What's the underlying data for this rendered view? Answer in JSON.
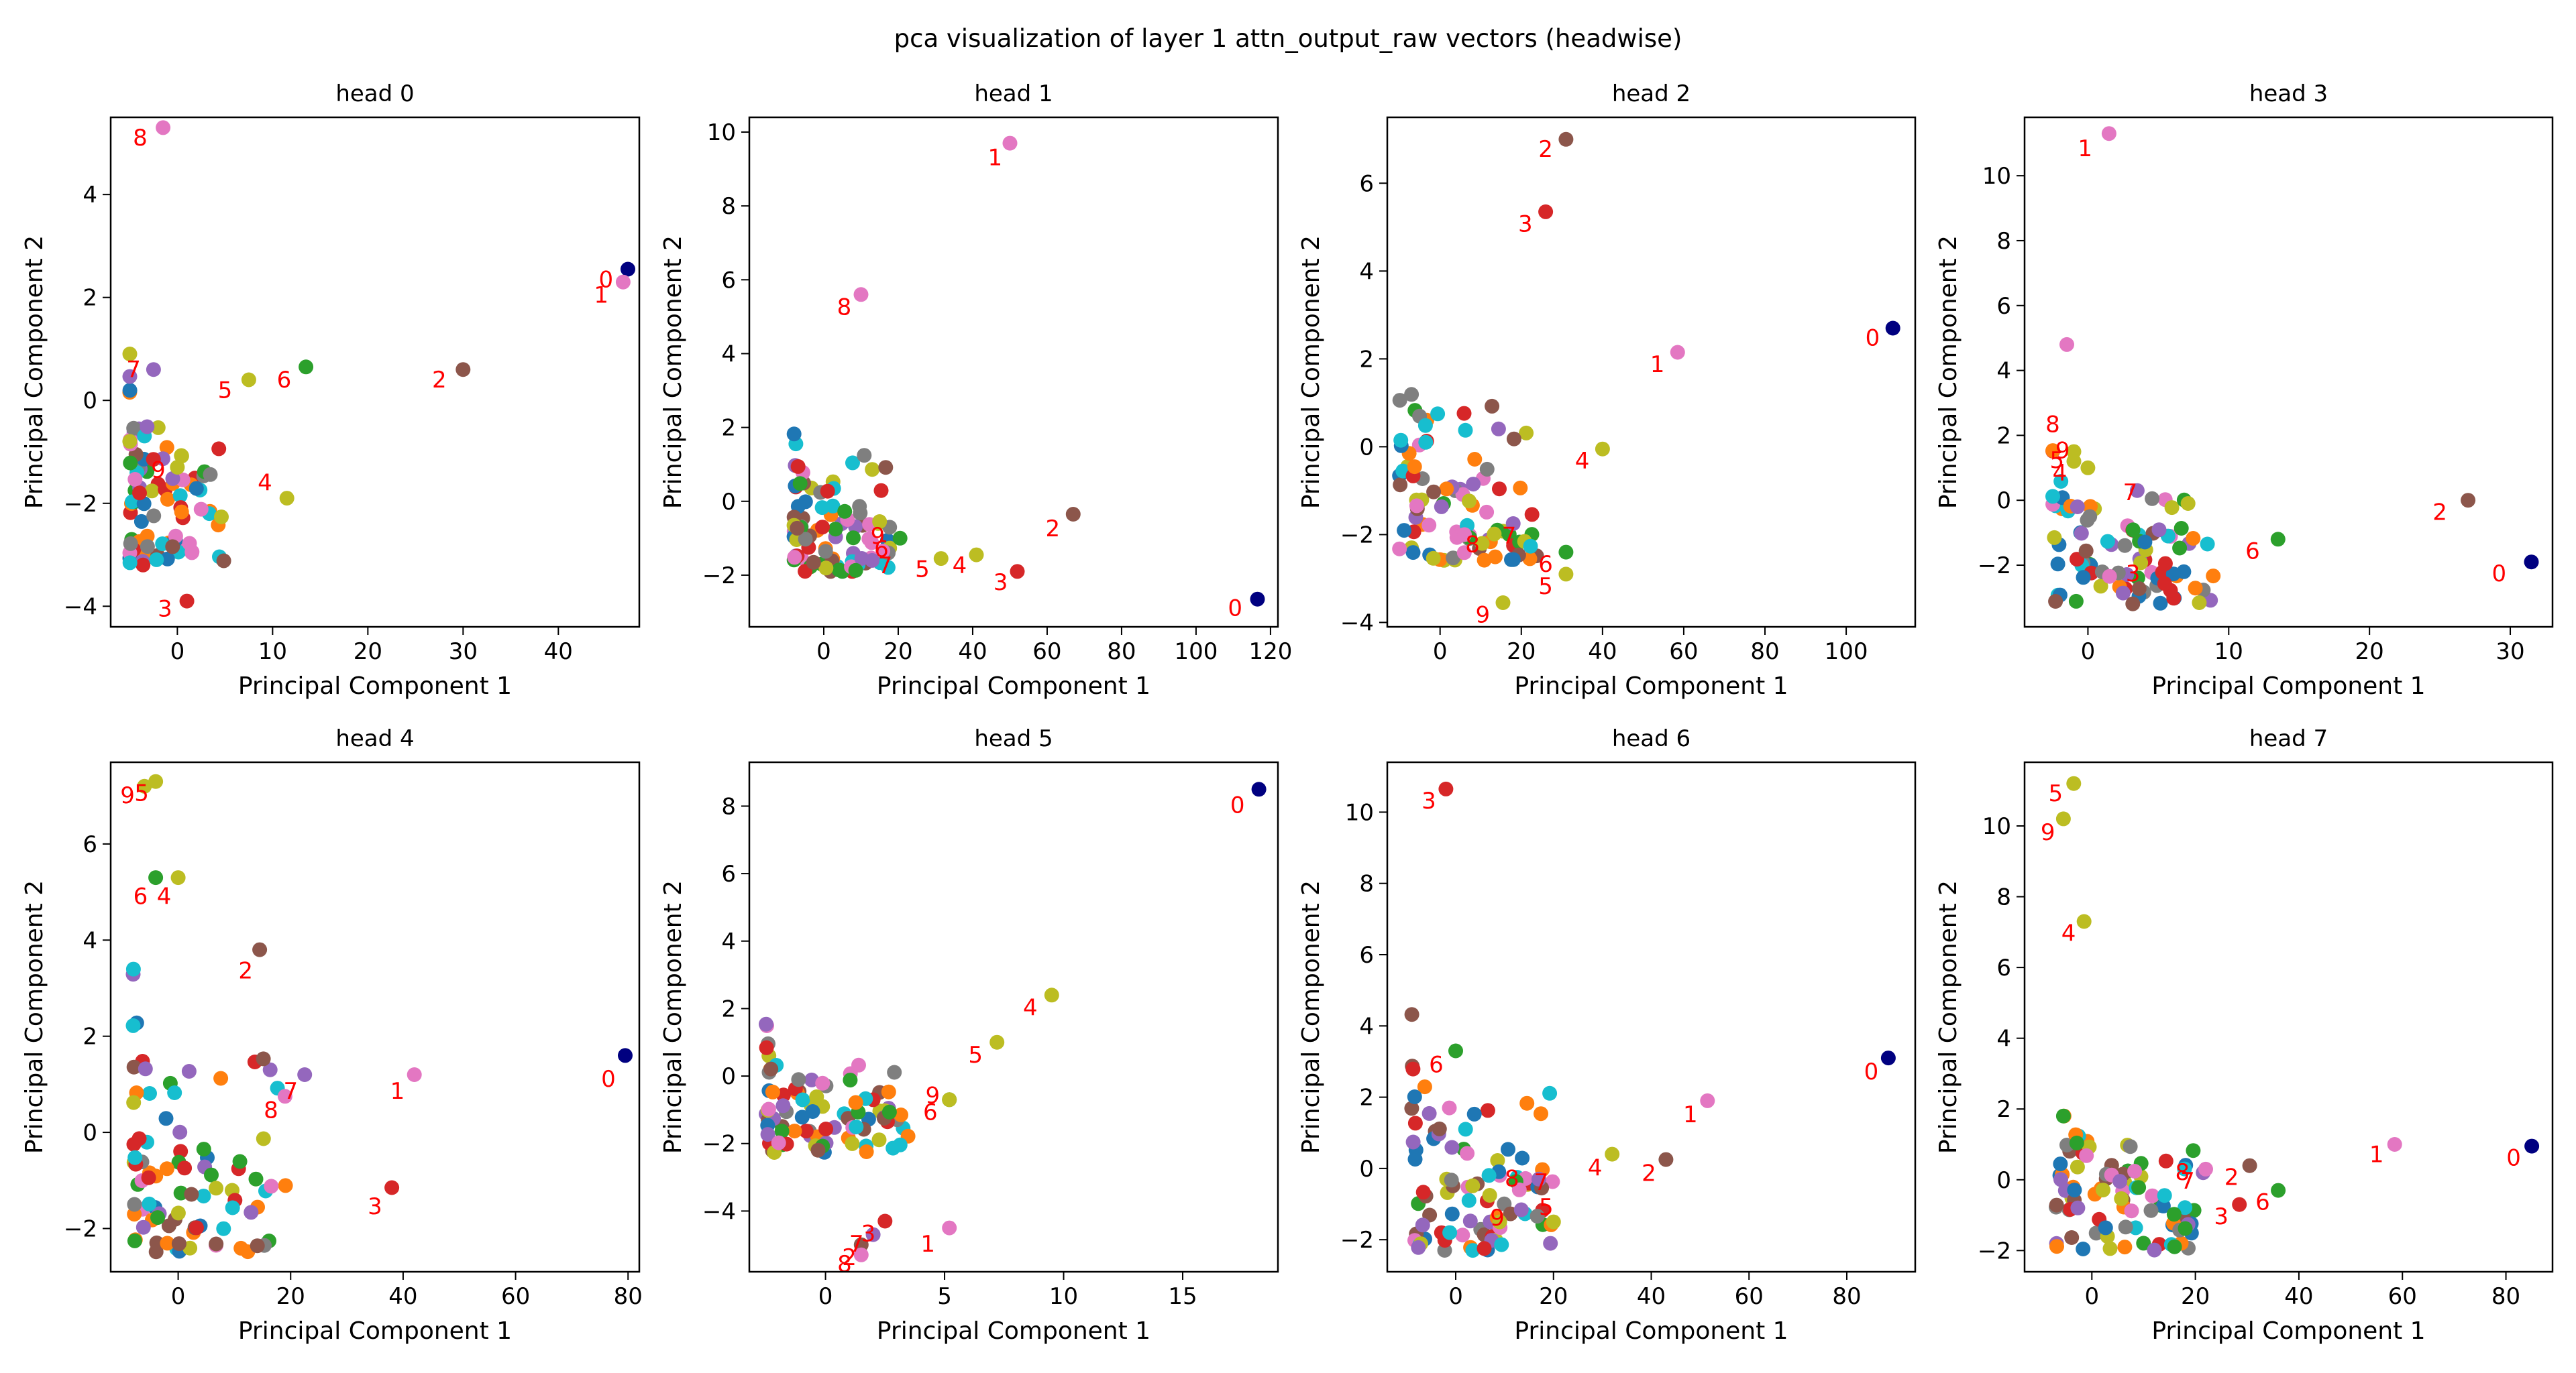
{
  "figure": {
    "title": "pca visualization of layer 1 attn_output_raw vectors (headwise)"
  },
  "colors": {
    "0": "#000080",
    "1": "#e377c2",
    "2": "#8c564b",
    "3": "#d62728",
    "4": "#bcbd22",
    "5": "#bcbd22",
    "6": "#2ca02c",
    "7": "#9467bd",
    "8": "#e377c2",
    "9": "#bcbd22",
    "label": "#ff0000",
    "palette": [
      "#1f77b4",
      "#ff7f0e",
      "#2ca02c",
      "#d62728",
      "#9467bd",
      "#8c564b",
      "#e377c2",
      "#7f7f7f",
      "#bcbd22",
      "#17becf"
    ]
  },
  "chart_data": [
    {
      "type": "scatter",
      "title": "head 0",
      "xlabel": "Principal Component 1",
      "ylabel": "Principal Component 2",
      "xlim": [
        -7,
        48.5
      ],
      "ylim": [
        -4.4,
        5.5
      ],
      "xticks": [
        0,
        10,
        20,
        30,
        40
      ],
      "yticks": [
        -4,
        -2,
        0,
        2,
        4
      ],
      "highlighted_points": [
        {
          "label": "0",
          "x": 47.3,
          "y": 2.55
        },
        {
          "label": "1",
          "x": 46.8,
          "y": 2.3
        },
        {
          "label": "2",
          "x": 30.0,
          "y": 0.6
        },
        {
          "label": "3",
          "x": 1.0,
          "y": -3.9
        },
        {
          "label": "4",
          "x": 11.5,
          "y": -1.9
        },
        {
          "label": "5",
          "x": 7.5,
          "y": 0.4
        },
        {
          "label": "6",
          "x": 13.5,
          "y": 0.65
        },
        {
          "label": "7",
          "x": -2.5,
          "y": 0.6
        },
        {
          "label": "8",
          "x": -1.5,
          "y": 5.3
        },
        {
          "label": "9",
          "x": 0.0,
          "y": -1.3
        }
      ],
      "point_labels": [
        {
          "text": "0",
          "x": 45.0,
          "y": 2.2
        },
        {
          "text": "1",
          "x": 44.5,
          "y": 1.9
        },
        {
          "text": "2",
          "x": 27.5,
          "y": 0.25
        },
        {
          "text": "3",
          "x": -1.3,
          "y": -4.2
        },
        {
          "text": "4",
          "x": 9.2,
          "y": -1.75
        },
        {
          "text": "5",
          "x": 5.0,
          "y": 0.05
        },
        {
          "text": "6",
          "x": 11.2,
          "y": 0.25
        },
        {
          "text": "7",
          "x": -4.6,
          "y": 0.45
        },
        {
          "text": "8",
          "x": -3.9,
          "y": 4.95
        },
        {
          "text": "9",
          "x": -2.0,
          "y": -1.5
        }
      ],
      "cluster": {
        "x": [
          -5,
          5
        ],
        "y": [
          -3.2,
          1.3
        ],
        "count": 90
      }
    },
    {
      "type": "scatter",
      "title": "head 1",
      "xlabel": "Principal Component 1",
      "ylabel": "Principal Component 2",
      "xlim": [
        -20,
        122
      ],
      "ylim": [
        -3.4,
        10.4
      ],
      "xticks": [
        0,
        20,
        40,
        60,
        80,
        100,
        120
      ],
      "yticks": [
        -2,
        0,
        2,
        4,
        6,
        8,
        10
      ],
      "highlighted_points": [
        {
          "label": "0",
          "x": 116.5,
          "y": -2.65
        },
        {
          "label": "1",
          "x": 50.0,
          "y": 9.7
        },
        {
          "label": "2",
          "x": 67.0,
          "y": -0.35
        },
        {
          "label": "3",
          "x": 52.0,
          "y": -1.9
        },
        {
          "label": "4",
          "x": 41.0,
          "y": -1.45
        },
        {
          "label": "5",
          "x": 31.5,
          "y": -1.55
        },
        {
          "label": "6",
          "x": 20.5,
          "y": -1.0
        },
        {
          "label": "7",
          "x": 13.0,
          "y": -1.6
        },
        {
          "label": "8",
          "x": 10.0,
          "y": 5.6
        },
        {
          "label": "9",
          "x": 15.0,
          "y": -0.55
        }
      ],
      "point_labels": [
        {
          "text": "0",
          "x": 110.5,
          "y": -3.1
        },
        {
          "text": "1",
          "x": 46.0,
          "y": 9.1
        },
        {
          "text": "2",
          "x": 61.5,
          "y": -0.95
        },
        {
          "text": "3",
          "x": 47.5,
          "y": -2.4
        },
        {
          "text": "4",
          "x": 36.5,
          "y": -1.95
        },
        {
          "text": "5",
          "x": 26.5,
          "y": -2.05
        },
        {
          "text": "6",
          "x": 15.5,
          "y": -1.5
        },
        {
          "text": "7",
          "x": 16.5,
          "y": -1.95
        },
        {
          "text": "8",
          "x": 5.5,
          "y": 5.05
        },
        {
          "text": "9",
          "x": 14.5,
          "y": -1.15
        }
      ],
      "cluster": {
        "x": [
          -8,
          18
        ],
        "y": [
          -1.9,
          3.5
        ],
        "count": 90
      }
    },
    {
      "type": "scatter",
      "title": "head 2",
      "xlabel": "Principal Component 1",
      "ylabel": "Principal Component 2",
      "xlim": [
        -13,
        117
      ],
      "ylim": [
        -4.1,
        7.5
      ],
      "xticks": [
        0,
        20,
        40,
        60,
        80,
        100
      ],
      "yticks": [
        -4,
        -2,
        0,
        2,
        4,
        6
      ],
      "highlighted_points": [
        {
          "label": "0",
          "x": 111.5,
          "y": 2.7
        },
        {
          "label": "1",
          "x": 58.5,
          "y": 2.15
        },
        {
          "label": "2",
          "x": 31.0,
          "y": 7.0
        },
        {
          "label": "3",
          "x": 26.0,
          "y": 5.35
        },
        {
          "label": "4",
          "x": 40.0,
          "y": -0.05
        },
        {
          "label": "5",
          "x": 31.0,
          "y": -2.9
        },
        {
          "label": "6",
          "x": 31.0,
          "y": -2.4
        },
        {
          "label": "7",
          "x": 18.0,
          "y": -1.75
        },
        {
          "label": "8",
          "x": 6.0,
          "y": -2.0
        },
        {
          "label": "9",
          "x": 15.5,
          "y": -3.55
        }
      ],
      "point_labels": [
        {
          "text": "0",
          "x": 106.5,
          "y": 2.3
        },
        {
          "text": "1",
          "x": 53.5,
          "y": 1.7
        },
        {
          "text": "2",
          "x": 26.0,
          "y": 6.6
        },
        {
          "text": "3",
          "x": 21.0,
          "y": 4.9
        },
        {
          "text": "4",
          "x": 35.0,
          "y": -0.5
        },
        {
          "text": "5",
          "x": 26.0,
          "y": -3.35
        },
        {
          "text": "6",
          "x": 26.0,
          "y": -2.85
        },
        {
          "text": "7",
          "x": 17.0,
          "y": -2.2
        },
        {
          "text": "8",
          "x": 8.0,
          "y": -2.4
        },
        {
          "text": "9",
          "x": 10.5,
          "y": -4.0
        }
      ],
      "cluster": {
        "x": [
          -10,
          25
        ],
        "y": [
          -2.6,
          3.3
        ],
        "count": 90
      }
    },
    {
      "type": "scatter",
      "title": "head 3",
      "xlabel": "Principal Component 1",
      "ylabel": "Principal Component 2",
      "xlim": [
        -4.5,
        33
      ],
      "ylim": [
        -3.9,
        11.8
      ],
      "xticks": [
        0,
        10,
        20,
        30
      ],
      "yticks": [
        -2,
        0,
        2,
        4,
        6,
        8,
        10
      ],
      "highlighted_points": [
        {
          "label": "0",
          "x": 31.5,
          "y": -1.9
        },
        {
          "label": "1",
          "x": 1.5,
          "y": 11.3
        },
        {
          "label": "2",
          "x": 27.0,
          "y": 0.0
        },
        {
          "label": "3",
          "x": 5.5,
          "y": -1.95
        },
        {
          "label": "4",
          "x": 0.0,
          "y": 1.0
        },
        {
          "label": "5",
          "x": -1.0,
          "y": 1.2
        },
        {
          "label": "6",
          "x": 13.5,
          "y": -1.2
        },
        {
          "label": "7",
          "x": 3.5,
          "y": 0.3
        },
        {
          "label": "8",
          "x": -1.5,
          "y": 4.8
        },
        {
          "label": "9",
          "x": -1.0,
          "y": 1.5
        }
      ],
      "point_labels": [
        {
          "text": "0",
          "x": 29.2,
          "y": -2.5
        },
        {
          "text": "1",
          "x": -0.2,
          "y": 10.6
        },
        {
          "text": "2",
          "x": 25.0,
          "y": -0.6
        },
        {
          "text": "3",
          "x": 3.2,
          "y": -2.5
        },
        {
          "text": "4",
          "x": -2.0,
          "y": 0.6
        },
        {
          "text": "5",
          "x": -2.2,
          "y": 1.0
        },
        {
          "text": "6",
          "x": 11.7,
          "y": -1.8
        },
        {
          "text": "7",
          "x": 3.0,
          "y": 0.0
        },
        {
          "text": "8",
          "x": -2.5,
          "y": 2.1
        },
        {
          "text": "9",
          "x": -1.8,
          "y": 1.3
        }
      ],
      "cluster": {
        "x": [
          -2.5,
          9
        ],
        "y": [
          -3.2,
          2.6
        ],
        "count": 90
      }
    },
    {
      "type": "scatter",
      "title": "head 4",
      "xlabel": "Principal Component 1",
      "ylabel": "Principal Component 2",
      "xlim": [
        -12,
        82
      ],
      "ylim": [
        -2.9,
        7.7
      ],
      "xticks": [
        0,
        20,
        40,
        60,
        80
      ],
      "yticks": [
        -2,
        0,
        2,
        4,
        6
      ],
      "highlighted_points": [
        {
          "label": "0",
          "x": 79.5,
          "y": 1.6
        },
        {
          "label": "1",
          "x": 42.0,
          "y": 1.2
        },
        {
          "label": "2",
          "x": 14.5,
          "y": 3.8
        },
        {
          "label": "3",
          "x": 38.0,
          "y": -1.15
        },
        {
          "label": "4",
          "x": 0.0,
          "y": 5.3
        },
        {
          "label": "5",
          "x": -4.0,
          "y": 7.3
        },
        {
          "label": "6",
          "x": -4.0,
          "y": 5.3
        },
        {
          "label": "7",
          "x": 22.5,
          "y": 1.2
        },
        {
          "label": "8",
          "x": 19.0,
          "y": 0.75
        },
        {
          "label": "9",
          "x": -6.0,
          "y": 7.2
        }
      ],
      "point_labels": [
        {
          "text": "0",
          "x": 76.5,
          "y": 0.95
        },
        {
          "text": "1",
          "x": 39.0,
          "y": 0.7
        },
        {
          "text": "2",
          "x": 12.0,
          "y": 3.2
        },
        {
          "text": "3",
          "x": 35.0,
          "y": -1.7
        },
        {
          "text": "4",
          "x": -2.5,
          "y": 4.75
        },
        {
          "text": "5",
          "x": -6.5,
          "y": 6.9
        },
        {
          "text": "6",
          "x": -6.7,
          "y": 4.75
        },
        {
          "text": "7",
          "x": 20.0,
          "y": 0.7
        },
        {
          "text": "8",
          "x": 16.5,
          "y": 0.3
        },
        {
          "text": "9",
          "x": -9.0,
          "y": 6.85
        }
      ],
      "cluster": {
        "x": [
          -8,
          20
        ],
        "y": [
          -2.5,
          4.5
        ],
        "count": 90
      }
    },
    {
      "type": "scatter",
      "title": "head 5",
      "xlabel": "Principal Component 1",
      "ylabel": "Principal Component 2",
      "xlim": [
        -3.2,
        19
      ],
      "ylim": [
        -5.8,
        9.3
      ],
      "xticks": [
        0,
        5,
        10,
        15
      ],
      "yticks": [
        -4,
        -2,
        0,
        2,
        4,
        6,
        8
      ],
      "highlighted_points": [
        {
          "label": "0",
          "x": 18.2,
          "y": 8.5
        },
        {
          "label": "1",
          "x": 5.2,
          "y": -4.5
        },
        {
          "label": "2",
          "x": 1.5,
          "y": -5.0
        },
        {
          "label": "3",
          "x": 2.5,
          "y": -4.3
        },
        {
          "label": "4",
          "x": 9.5,
          "y": 2.4
        },
        {
          "label": "5",
          "x": 7.2,
          "y": 1.0
        },
        {
          "label": "6",
          "x": 5.2,
          "y": -0.7
        },
        {
          "label": "7",
          "x": 2.0,
          "y": -4.7
        },
        {
          "label": "8",
          "x": 1.5,
          "y": -5.3
        },
        {
          "label": "9",
          "x": 5.2,
          "y": -0.7
        }
      ],
      "point_labels": [
        {
          "text": "0",
          "x": 17.3,
          "y": 7.8
        },
        {
          "text": "1",
          "x": 4.3,
          "y": -5.2
        },
        {
          "text": "2",
          "x": 1.0,
          "y": -5.6
        },
        {
          "text": "3",
          "x": 1.8,
          "y": -4.9
        },
        {
          "text": "4",
          "x": 8.6,
          "y": 1.8
        },
        {
          "text": "5",
          "x": 6.3,
          "y": 0.4
        },
        {
          "text": "6",
          "x": 4.4,
          "y": -1.3
        },
        {
          "text": "7",
          "x": 1.3,
          "y": -5.2
        },
        {
          "text": "8",
          "x": 0.8,
          "y": -5.8
        },
        {
          "text": "9",
          "x": 4.5,
          "y": -0.8
        }
      ],
      "cluster": {
        "x": [
          -2.5,
          3.5
        ],
        "y": [
          -2.3,
          2.3
        ],
        "count": 90
      }
    },
    {
      "type": "scatter",
      "title": "head 6",
      "xlabel": "Principal Component 1",
      "ylabel": "Principal Component 2",
      "xlim": [
        -14,
        94
      ],
      "ylim": [
        -2.9,
        11.4
      ],
      "xticks": [
        0,
        20,
        40,
        60,
        80
      ],
      "yticks": [
        -2,
        0,
        2,
        4,
        6,
        8,
        10
      ],
      "highlighted_points": [
        {
          "label": "0",
          "x": 88.5,
          "y": 3.1
        },
        {
          "label": "1",
          "x": 51.5,
          "y": 1.9
        },
        {
          "label": "2",
          "x": 43.0,
          "y": 0.25
        },
        {
          "label": "3",
          "x": -2.0,
          "y": 10.65
        },
        {
          "label": "4",
          "x": 32.0,
          "y": 0.4
        },
        {
          "label": "5",
          "x": 20.0,
          "y": -1.5
        },
        {
          "label": "6",
          "x": 0.0,
          "y": 3.3
        },
        {
          "label": "7",
          "x": 17.0,
          "y": -0.3
        },
        {
          "label": "8",
          "x": 13.0,
          "y": -0.6
        },
        {
          "label": "9",
          "x": 9.0,
          "y": -1.5
        }
      ],
      "point_labels": [
        {
          "text": "0",
          "x": 85.0,
          "y": 2.5
        },
        {
          "text": "1",
          "x": 48.0,
          "y": 1.3
        },
        {
          "text": "2",
          "x": 39.5,
          "y": -0.35
        },
        {
          "text": "3",
          "x": -5.5,
          "y": 10.1
        },
        {
          "text": "4",
          "x": 28.5,
          "y": -0.2
        },
        {
          "text": "5",
          "x": 18.5,
          "y": -1.3
        },
        {
          "text": "6",
          "x": -4.0,
          "y": 2.7
        },
        {
          "text": "7",
          "x": 17.5,
          "y": -0.6
        },
        {
          "text": "8",
          "x": 11.5,
          "y": -0.5
        },
        {
          "text": "9",
          "x": 8.5,
          "y": -1.6
        }
      ],
      "cluster": {
        "x": [
          -9,
          20
        ],
        "y": [
          -2.3,
          5.2
        ],
        "count": 90
      }
    },
    {
      "type": "scatter",
      "title": "head 7",
      "xlabel": "Principal Component 1",
      "ylabel": "Principal Component 2",
      "xlim": [
        -13,
        89
      ],
      "ylim": [
        -2.6,
        11.8
      ],
      "xticks": [
        0,
        20,
        40,
        60,
        80
      ],
      "yticks": [
        -2,
        0,
        2,
        4,
        6,
        8,
        10
      ],
      "highlighted_points": [
        {
          "label": "0",
          "x": 85.0,
          "y": 0.95
        },
        {
          "label": "1",
          "x": 58.5,
          "y": 1.0
        },
        {
          "label": "2",
          "x": 30.5,
          "y": 0.4
        },
        {
          "label": "3",
          "x": 28.5,
          "y": -0.7
        },
        {
          "label": "4",
          "x": -1.5,
          "y": 7.3
        },
        {
          "label": "5",
          "x": -3.5,
          "y": 11.2
        },
        {
          "label": "6",
          "x": 36.0,
          "y": -0.3
        },
        {
          "label": "7",
          "x": 21.5,
          "y": 0.2
        },
        {
          "label": "8",
          "x": 22.0,
          "y": 0.3
        },
        {
          "label": "9",
          "x": -5.5,
          "y": 10.2
        }
      ],
      "point_labels": [
        {
          "text": "0",
          "x": 81.5,
          "y": 0.4
        },
        {
          "text": "1",
          "x": 55.0,
          "y": 0.5
        },
        {
          "text": "2",
          "x": 27.0,
          "y": -0.15
        },
        {
          "text": "3",
          "x": 25.0,
          "y": -1.25
        },
        {
          "text": "4",
          "x": -4.5,
          "y": 6.75
        },
        {
          "text": "5",
          "x": -7.0,
          "y": 10.7
        },
        {
          "text": "6",
          "x": 33.0,
          "y": -0.85
        },
        {
          "text": "7",
          "x": 18.5,
          "y": -0.25
        },
        {
          "text": "8",
          "x": 17.5,
          "y": 0.0
        },
        {
          "text": "9",
          "x": -8.5,
          "y": 9.6
        }
      ],
      "cluster": {
        "x": [
          -7,
          20
        ],
        "y": [
          -2.0,
          3.7
        ],
        "count": 90
      }
    }
  ]
}
